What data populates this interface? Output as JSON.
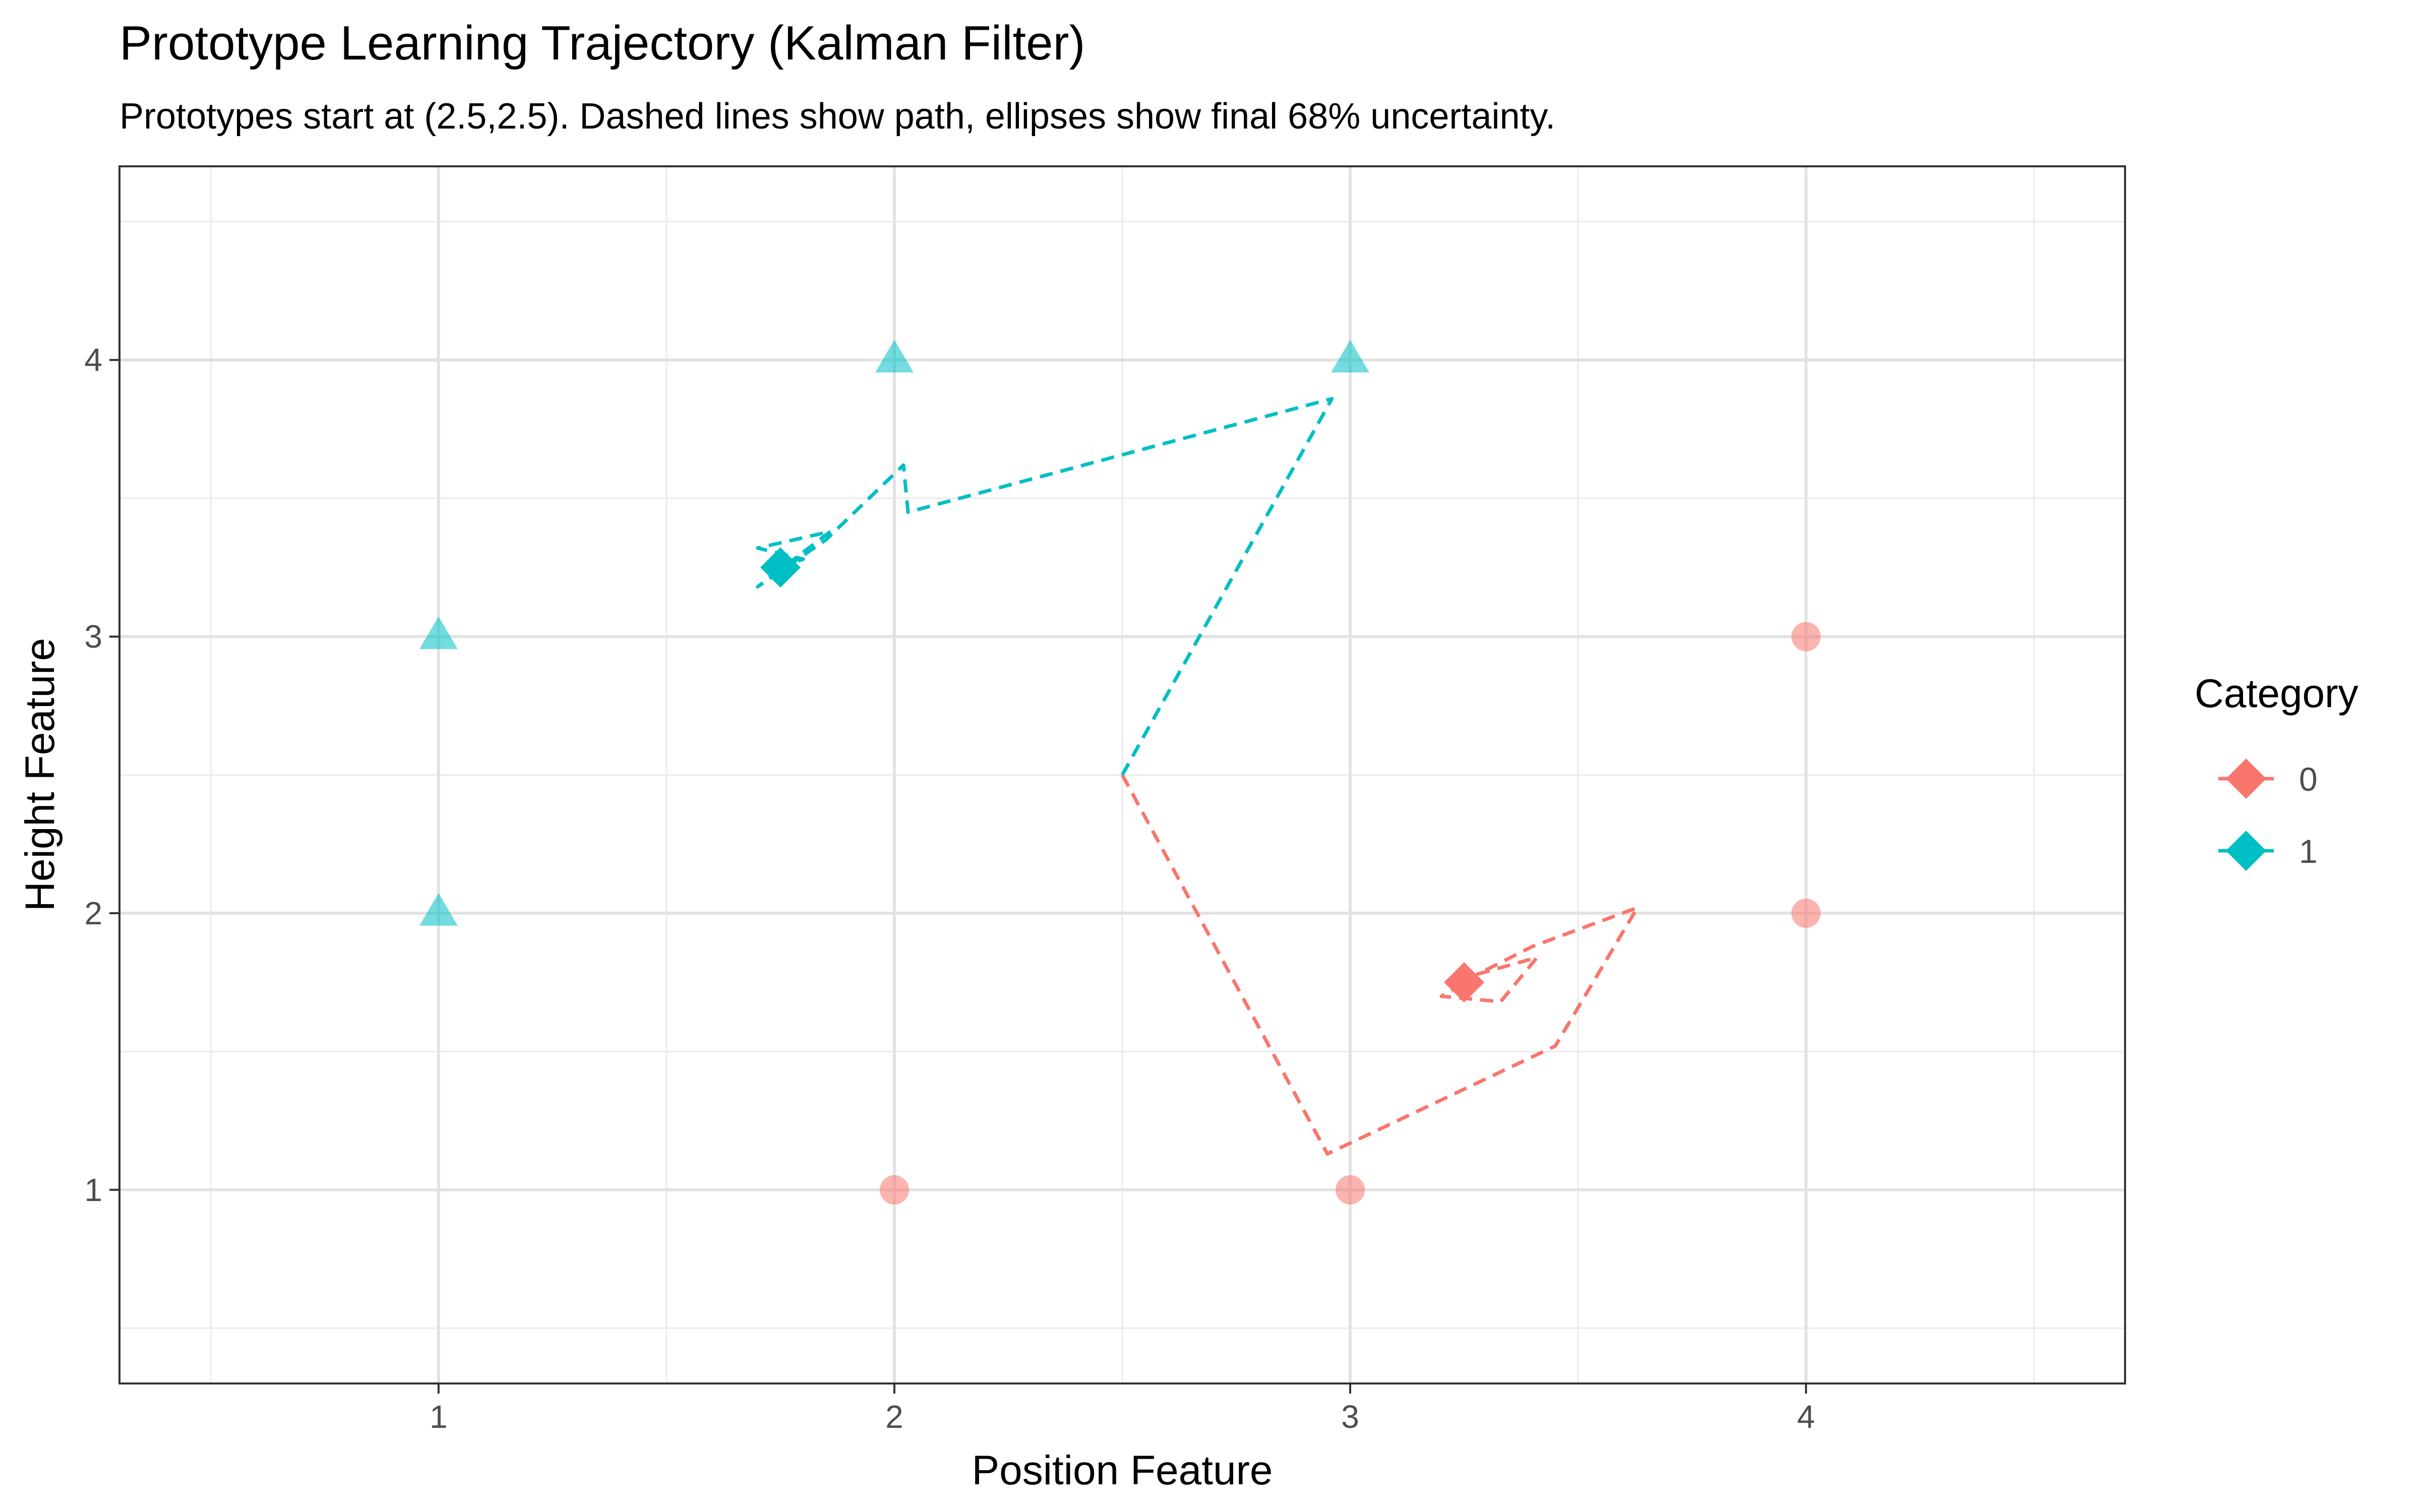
{
  "chart_data": {
    "type": "scatter",
    "title": "Prototype Learning Trajectory (Kalman Filter)",
    "subtitle": "Prototypes start at (2.5,2.5). Dashed lines show path, ellipses show final 68% uncertainty.",
    "xlabel": "Position Feature",
    "ylabel": "Height Feature",
    "xlim": [
      0.3,
      4.7
    ],
    "ylim": [
      0.3,
      4.7
    ],
    "x_ticks": [
      1,
      2,
      3,
      4
    ],
    "y_ticks": [
      1,
      2,
      3,
      4
    ],
    "grid": true,
    "legend": {
      "title": "Category",
      "position": "right",
      "entries": [
        {
          "label": "0",
          "color": "#F8766D"
        },
        {
          "label": "1",
          "color": "#00BFC4"
        }
      ]
    },
    "training_points": [
      {
        "category": "0",
        "shape": "circle",
        "color": "#F8766D",
        "points": [
          [
            2,
            1
          ],
          [
            3,
            1
          ],
          [
            4,
            2
          ],
          [
            4,
            3
          ]
        ]
      },
      {
        "category": "1",
        "shape": "triangle",
        "color": "#00BFC4",
        "points": [
          [
            1,
            2
          ],
          [
            1,
            3
          ],
          [
            2,
            4
          ],
          [
            3,
            4
          ]
        ]
      }
    ],
    "trajectories": [
      {
        "category": "0",
        "color": "#F8766D",
        "path": [
          [
            2.5,
            2.5
          ],
          [
            2.95,
            1.13
          ],
          [
            3.45,
            1.52
          ],
          [
            3.63,
            2.02
          ],
          [
            3.4,
            1.88
          ],
          [
            3.28,
            1.78
          ],
          [
            3.41,
            1.84
          ],
          [
            3.33,
            1.68
          ],
          [
            3.2,
            1.7
          ],
          [
            3.25,
            1.75
          ]
        ],
        "final": [
          3.25,
          1.75
        ]
      },
      {
        "category": "1",
        "color": "#00BFC4",
        "path": [
          [
            2.5,
            2.5
          ],
          [
            2.96,
            3.86
          ],
          [
            2.03,
            3.45
          ],
          [
            2.02,
            3.62
          ],
          [
            1.85,
            3.35
          ],
          [
            1.7,
            3.18
          ],
          [
            1.86,
            3.38
          ],
          [
            1.7,
            3.32
          ],
          [
            1.8,
            3.28
          ],
          [
            1.75,
            3.25
          ]
        ],
        "final": [
          1.75,
          3.25
        ]
      }
    ],
    "uncertainty_ellipses": [
      {
        "category": "0",
        "center": [
          3.25,
          1.75
        ],
        "rx": 0.02,
        "ry": 0.015
      },
      {
        "category": "1",
        "center": [
          1.75,
          3.25
        ],
        "rx": 0.02,
        "ry": 0.015
      }
    ]
  }
}
